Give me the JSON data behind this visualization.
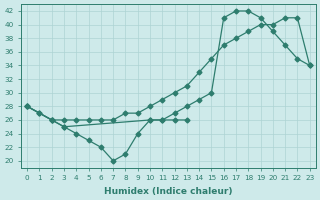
{
  "xlabel": "Humidex (Indice chaleur)",
  "background_color": "#ceeaea",
  "line_color": "#2e7d6e",
  "grid_color": "#aed4d4",
  "xlim": [
    -0.5,
    23.5
  ],
  "ylim": [
    19,
    43
  ],
  "xticks": [
    0,
    1,
    2,
    3,
    4,
    5,
    6,
    7,
    8,
    9,
    10,
    11,
    12,
    13,
    14,
    15,
    16,
    17,
    18,
    19,
    20,
    21,
    22,
    23
  ],
  "yticks": [
    20,
    22,
    24,
    26,
    28,
    30,
    32,
    34,
    36,
    38,
    40,
    42
  ],
  "line1_x": [
    0,
    1,
    2,
    3,
    4,
    5,
    6,
    7,
    8,
    9,
    10,
    11,
    12,
    13
  ],
  "line1_y": [
    28,
    27,
    26,
    25,
    24,
    23,
    22,
    20,
    21,
    24,
    26,
    26,
    26,
    26
  ],
  "line2_x": [
    0,
    2,
    3,
    10,
    11,
    12,
    13,
    14,
    15,
    16,
    17,
    18,
    19,
    20,
    21,
    22,
    23
  ],
  "line2_y": [
    28,
    26,
    25,
    26,
    26,
    27,
    28,
    29,
    30,
    41,
    42,
    42,
    41,
    39,
    37,
    35,
    34
  ],
  "line3_x": [
    0,
    1,
    2,
    3,
    4,
    5,
    6,
    7,
    8,
    9,
    10,
    11,
    12,
    13,
    14,
    15,
    16,
    17,
    18,
    19,
    20,
    21,
    22,
    23
  ],
  "line3_y": [
    28,
    27,
    26,
    26,
    26,
    26,
    26,
    26,
    27,
    27,
    28,
    29,
    30,
    31,
    33,
    35,
    37,
    38,
    39,
    40,
    40,
    41,
    41,
    34
  ],
  "marker": "D",
  "markersize": 2.5
}
